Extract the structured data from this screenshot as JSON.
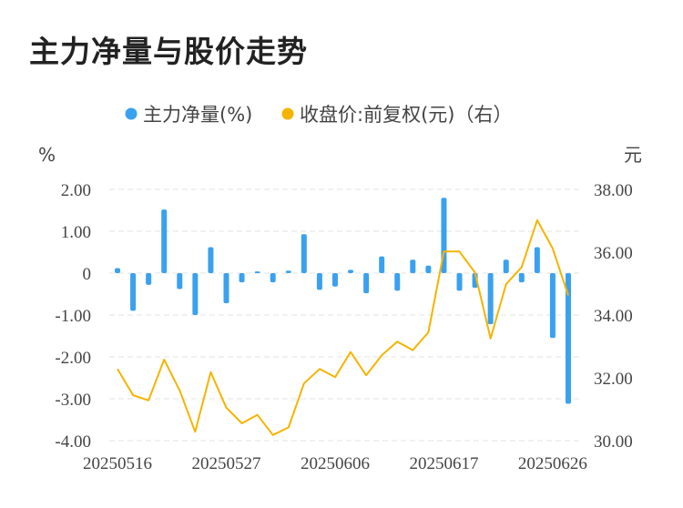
{
  "chart_title": "主力净量与股价走势",
  "colors": {
    "bar": "#3aa1ef",
    "line": "#f5b400",
    "grid": "#e3e3e3",
    "text": "#444444"
  },
  "chart_data": {
    "type": "bar+line",
    "title": "主力净量与股价走势",
    "legend": [
      "主力净量(%)",
      "收盘价:前复权(元)（右）"
    ],
    "legend_position": "top-center",
    "left_unit": "%",
    "right_unit": "元",
    "x_tick_labels": [
      "20250516",
      "20250527",
      "20250606",
      "20250617",
      "20250626"
    ],
    "x_tick_indices": [
      0,
      7,
      14,
      21,
      28
    ],
    "left_axis": {
      "min": -4.0,
      "max": 2.0,
      "ticks": [
        "-4.00",
        "-3.00",
        "-2.00",
        "-1.00",
        "0",
        "1.00",
        "2.00"
      ]
    },
    "right_axis": {
      "min": 30.0,
      "max": 38.0,
      "ticks": [
        "30.00",
        "32.00",
        "34.00",
        "36.00",
        "38.00"
      ]
    },
    "grid": true,
    "series": [
      {
        "name": "主力净量(%)",
        "type": "bar",
        "axis": "left",
        "values": [
          0.12,
          -0.9,
          -0.28,
          1.52,
          -0.38,
          -1.0,
          0.62,
          -0.72,
          -0.22,
          0.04,
          -0.22,
          0.06,
          0.93,
          -0.4,
          -0.32,
          0.08,
          -0.48,
          0.4,
          -0.42,
          0.32,
          0.18,
          1.8,
          -0.42,
          -0.35,
          -1.22,
          0.32,
          -0.22,
          0.62,
          -1.55,
          -3.12
        ]
      },
      {
        "name": "收盘价:前复权(元)（右）",
        "type": "line",
        "axis": "right",
        "values": [
          32.28,
          31.45,
          31.28,
          32.58,
          31.6,
          30.28,
          32.18,
          31.05,
          30.55,
          30.82,
          30.18,
          30.42,
          31.82,
          32.28,
          32.02,
          32.82,
          32.08,
          32.72,
          33.15,
          32.88,
          33.45,
          36.02,
          36.02,
          35.35,
          33.25,
          34.98,
          35.52,
          37.02,
          36.12,
          34.62
        ]
      }
    ]
  }
}
